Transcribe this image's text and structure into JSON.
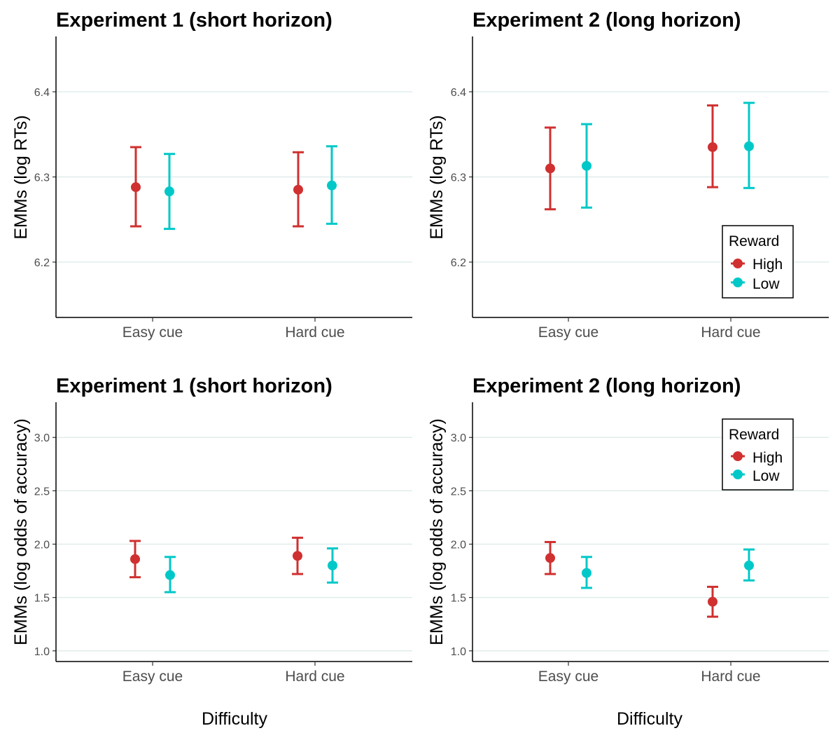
{
  "legend": {
    "title": "Reward",
    "entries": [
      {
        "name": "High",
        "color": "#d03030"
      },
      {
        "name": "Low",
        "color": "#00c8c8"
      }
    ]
  },
  "xlabel": "Difficulty",
  "chart_data": [
    {
      "type": "scatter",
      "title": "Experiment 1 (short horizon)",
      "ylabel": "EMMs (log RTs)",
      "categories": [
        "Easy cue",
        "Hard cue"
      ],
      "ylim": [
        6.135,
        6.465
      ],
      "yticks": [
        "6.2",
        "6.3",
        "6.4"
      ],
      "grid": "horizontal",
      "legend": "none",
      "series": [
        {
          "name": "High",
          "color": "#d03030",
          "values": [
            6.288,
            6.285
          ],
          "lower": [
            6.242,
            6.242
          ],
          "upper": [
            6.335,
            6.329
          ]
        },
        {
          "name": "Low",
          "color": "#00c8c8",
          "values": [
            6.283,
            6.29
          ],
          "lower": [
            6.239,
            6.245
          ],
          "upper": [
            6.327,
            6.336
          ]
        }
      ]
    },
    {
      "type": "scatter",
      "title": "Experiment 2 (long horizon)",
      "ylabel": "EMMs (log RTs)",
      "categories": [
        "Easy cue",
        "Hard cue"
      ],
      "ylim": [
        6.135,
        6.465
      ],
      "yticks": [
        "6.2",
        "6.3",
        "6.4"
      ],
      "grid": "horizontal",
      "legend": "bottom-right",
      "series": [
        {
          "name": "High",
          "color": "#d03030",
          "values": [
            6.31,
            6.335
          ],
          "lower": [
            6.262,
            6.288
          ],
          "upper": [
            6.358,
            6.384
          ]
        },
        {
          "name": "Low",
          "color": "#00c8c8",
          "values": [
            6.313,
            6.336
          ],
          "lower": [
            6.264,
            6.287
          ],
          "upper": [
            6.362,
            6.387
          ]
        }
      ]
    },
    {
      "type": "scatter",
      "title": "Experiment 1 (short horizon)",
      "ylabel": "EMMs (log odds of accuracy)",
      "categories": [
        "Easy cue",
        "Hard cue"
      ],
      "ylim": [
        0.9,
        3.33
      ],
      "yticks": [
        "1.0",
        "1.5",
        "2.0",
        "2.5",
        "3.0"
      ],
      "grid": "horizontal",
      "legend": "none",
      "series": [
        {
          "name": "High",
          "color": "#d03030",
          "values": [
            1.86,
            1.89
          ],
          "lower": [
            1.69,
            1.72
          ],
          "upper": [
            2.03,
            2.06
          ]
        },
        {
          "name": "Low",
          "color": "#00c8c8",
          "values": [
            1.71,
            1.8
          ],
          "lower": [
            1.55,
            1.64
          ],
          "upper": [
            1.88,
            1.96
          ]
        }
      ]
    },
    {
      "type": "scatter",
      "title": "Experiment 2 (long horizon)",
      "ylabel": "EMMs (log odds of accuracy)",
      "categories": [
        "Easy cue",
        "Hard cue"
      ],
      "ylim": [
        0.9,
        3.33
      ],
      "yticks": [
        "1.0",
        "1.5",
        "2.0",
        "2.5",
        "3.0"
      ],
      "grid": "horizontal",
      "legend": "top-right",
      "series": [
        {
          "name": "High",
          "color": "#d03030",
          "values": [
            1.87,
            1.46
          ],
          "lower": [
            1.72,
            1.32
          ],
          "upper": [
            2.02,
            1.6
          ]
        },
        {
          "name": "Low",
          "color": "#00c8c8",
          "values": [
            1.73,
            1.8
          ],
          "lower": [
            1.59,
            1.66
          ],
          "upper": [
            1.88,
            1.95
          ]
        }
      ]
    }
  ]
}
